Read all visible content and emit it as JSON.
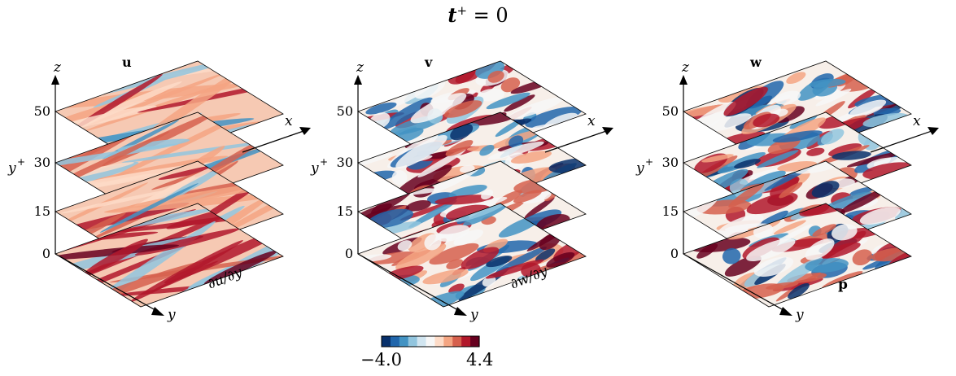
{
  "title": {
    "var": "t",
    "sup": "+",
    "rest": " = 0"
  },
  "axis_labels": {
    "z": "z",
    "x": "x",
    "y": "y",
    "yplus": "y",
    "yplus_sup": "+"
  },
  "ticks": [
    "50",
    "30",
    "15",
    "0"
  ],
  "panels": [
    {
      "top_label": "u",
      "bottom_label": "∂u/∂y",
      "bottom_bold": "u",
      "mode": "u"
    },
    {
      "top_label": "v",
      "bottom_label": "∂w/∂y",
      "bottom_bold": "w",
      "mode": "v"
    },
    {
      "top_label": "w",
      "bottom_label": "p",
      "bottom_bold": "p",
      "mode": "w"
    }
  ],
  "colorbar": {
    "min_label": "−4.0",
    "max_label": "4.4",
    "colors": [
      "#08306b",
      "#2166ac",
      "#4393c3",
      "#92c5de",
      "#d1e5f0",
      "#f7f7f7",
      "#fddbc7",
      "#f4a582",
      "#d6604d",
      "#b2182b",
      "#67001f"
    ]
  }
}
